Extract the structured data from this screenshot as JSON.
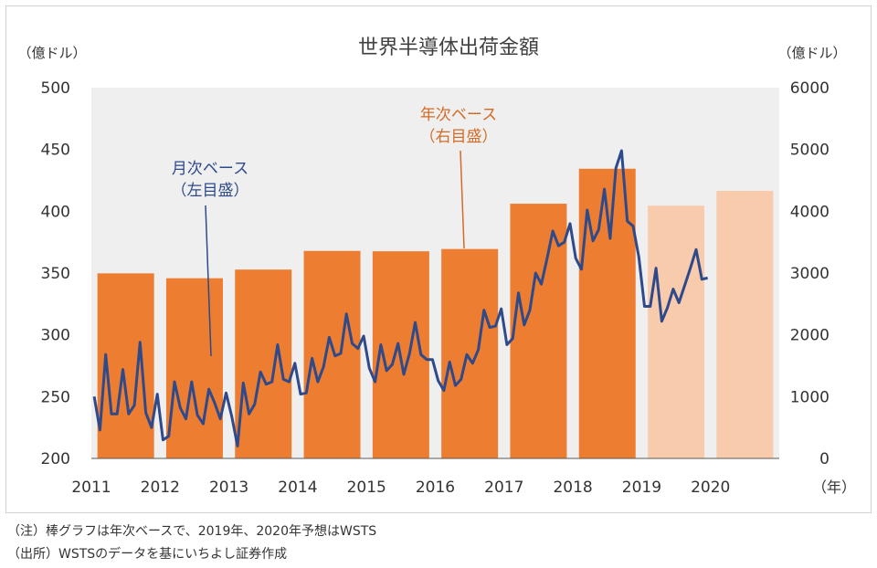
{
  "chart_data": {
    "type": "bar+line",
    "title": "世界半導体出荷金額",
    "left_axis_label": "（億ドル）",
    "right_axis_label": "（億ドル）",
    "x_unit_label": "（年）",
    "left_ylim": [
      200,
      500
    ],
    "left_ticks": [
      200,
      250,
      300,
      350,
      400,
      450,
      500
    ],
    "right_ylim": [
      0,
      6000
    ],
    "right_ticks": [
      0,
      1000,
      2000,
      3000,
      4000,
      5000,
      6000
    ],
    "categories": [
      "2011",
      "2012",
      "2013",
      "2014",
      "2015",
      "2016",
      "2017",
      "2018",
      "2019",
      "2020"
    ],
    "bars": {
      "name": "年次ベース（右目盛）",
      "values": [
        2995,
        2916,
        3056,
        3358,
        3352,
        3389,
        4122,
        4688,
        4090,
        4330
      ],
      "forecast": [
        false,
        false,
        false,
        false,
        false,
        false,
        false,
        false,
        true,
        true
      ]
    },
    "line": {
      "name": "月次ベース（左目盛）",
      "values": [
        250,
        223,
        284,
        236,
        236,
        272,
        236,
        243,
        294,
        237,
        225,
        252,
        215,
        218,
        262,
        241,
        232,
        262,
        235,
        228,
        256,
        245,
        232,
        253,
        234,
        210,
        261,
        236,
        244,
        270,
        260,
        262,
        292,
        264,
        262,
        277,
        252,
        253,
        281,
        262,
        274,
        298,
        283,
        285,
        317,
        293,
        289,
        299,
        273,
        262,
        292,
        271,
        276,
        293,
        268,
        285,
        310,
        284,
        280,
        280,
        263,
        255,
        278,
        259,
        264,
        284,
        277,
        288,
        320,
        306,
        307,
        321,
        292,
        297,
        334,
        308,
        320,
        350,
        341,
        362,
        384,
        372,
        375,
        390,
        362,
        353,
        401,
        376,
        385,
        418,
        378,
        435,
        449,
        392,
        388,
        363,
        323,
        323,
        354,
        311,
        322,
        337,
        326,
        340,
        354,
        369,
        345,
        346
      ]
    },
    "annotations": [
      {
        "line1": "年次ベース",
        "line2": "（右目盛）",
        "color": "#d46b24"
      },
      {
        "line1": "月次ベース",
        "line2": "（左目盛）",
        "color": "#2e4a8b"
      }
    ]
  },
  "notes": {
    "note1": "（注）棒グラフは年次ベースで、2019年、2020年予想はWSTS",
    "note2": "（出所）WSTSのデータを基にいちよし証券作成"
  },
  "colors": {
    "bar": "#ed7d31",
    "bar_forecast": "#f8cbad",
    "line": "#2e4a8b",
    "plot_bg": "#efefef",
    "axis": "#595959",
    "annotation_orange": "#d46b24"
  }
}
